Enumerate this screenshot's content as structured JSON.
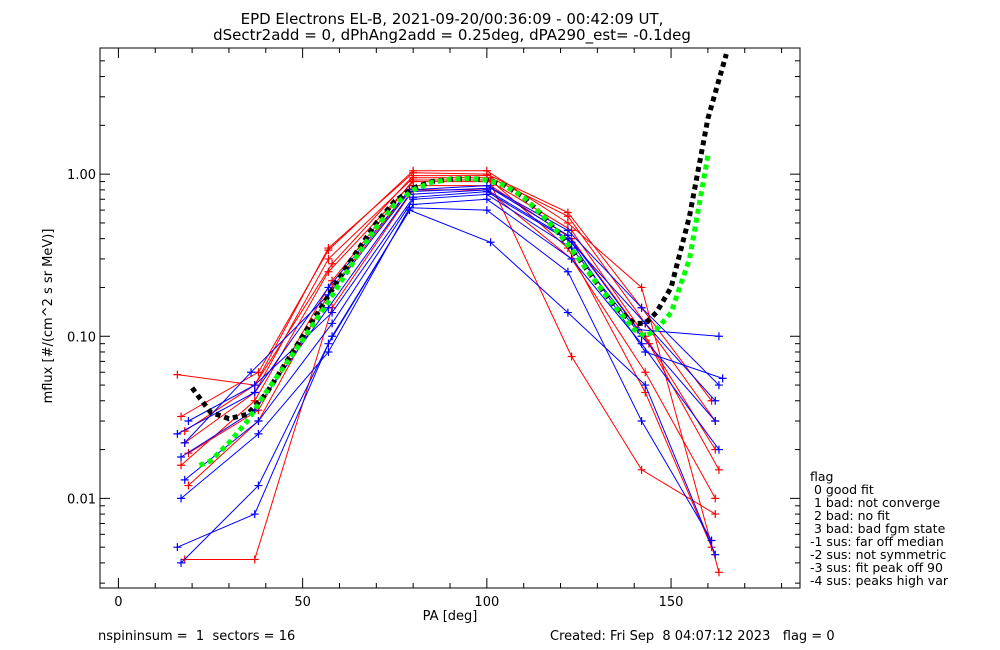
{
  "chart_data": {
    "type": "line",
    "title_line1": "EPD Electrons EL-B, 2021-09-20/00:36:09 - 00:42:09 UT,",
    "title_line2": "dSectr2add = 0, dPhAng2add = 0.25deg, dPA290_est=  -0.1deg",
    "xlabel": "PA [deg]",
    "ylabel": "mflux [#/(cm^2 s sr MeV)]",
    "xlim": [
      -5,
      185
    ],
    "ylim": [
      0.0028,
      6.0
    ],
    "y_scale": "log",
    "x_ticks": [
      0,
      50,
      100,
      150
    ],
    "x_tick_labels": [
      "0",
      "50",
      "100",
      "150"
    ],
    "y_ticks": [
      0.01,
      0.1,
      1.0
    ],
    "y_tick_labels": [
      "0.01",
      "0.10",
      "1.00"
    ],
    "grid": false,
    "series": [
      {
        "color": "#ff0000",
        "style": "solid",
        "marker": "+",
        "curves": [
          [
            [
              16,
              0.058
            ],
            [
              37,
              0.05
            ],
            [
              57,
              0.35
            ],
            [
              80,
              1.02
            ],
            [
              100,
              1.0
            ],
            [
              122,
              0.58
            ],
            [
              142,
              0.15
            ],
            [
              161,
              0.04
            ]
          ],
          [
            [
              18,
              0.022
            ],
            [
              37,
              0.045
            ],
            [
              57,
              0.3
            ],
            [
              80,
              0.95
            ],
            [
              101,
              0.95
            ],
            [
              122,
              0.55
            ],
            [
              143,
              0.12
            ],
            [
              162,
              0.03
            ]
          ],
          [
            [
              17,
              0.016
            ],
            [
              37,
              0.04
            ],
            [
              57,
              0.25
            ],
            [
              80,
              0.9
            ],
            [
              101,
              0.9
            ],
            [
              123,
              0.45
            ],
            [
              143,
              0.1
            ],
            [
              162,
              0.02
            ]
          ],
          [
            [
              19,
              0.012
            ],
            [
              38,
              0.03
            ],
            [
              58,
              0.2
            ],
            [
              80,
              0.85
            ],
            [
              101,
              0.85
            ],
            [
              123,
              0.4
            ],
            [
              144,
              0.09
            ],
            [
              163,
              0.015
            ]
          ],
          [
            [
              18,
              0.0042
            ],
            [
              37,
              0.0042
            ],
            [
              58,
              0.15
            ],
            [
              80,
              0.8
            ],
            [
              100,
              0.8
            ],
            [
              123,
              0.3
            ],
            [
              143,
              0.06
            ],
            [
              162,
              0.01
            ]
          ],
          [
            [
              17,
              0.032
            ],
            [
              38,
              0.06
            ],
            [
              57,
              0.34
            ],
            [
              80,
              1.05
            ],
            [
              100,
              1.05
            ],
            [
              122,
              0.5
            ],
            [
              142,
              0.2
            ],
            [
              163,
              0.0035
            ]
          ],
          [
            [
              18,
              0.026
            ],
            [
              37,
              0.05
            ],
            [
              58,
              0.28
            ],
            [
              80,
              0.98
            ],
            [
              100,
              0.98
            ],
            [
              123,
              0.075
            ],
            [
              142,
              0.015
            ],
            [
              162,
              0.008
            ]
          ],
          [
            [
              19,
              0.019
            ],
            [
              38,
              0.035
            ],
            [
              58,
              0.22
            ],
            [
              80,
              0.92
            ],
            [
              101,
              0.92
            ],
            [
              122,
              0.35
            ],
            [
              143,
              0.045
            ],
            [
              161,
              0.005
            ]
          ]
        ]
      },
      {
        "color": "#0000ff",
        "style": "solid",
        "marker": "+",
        "curves": [
          [
            [
              16,
              0.025
            ],
            [
              37,
              0.045
            ],
            [
              57,
              0.2
            ],
            [
              79,
              0.8
            ],
            [
              100,
              0.85
            ],
            [
              122,
              0.45
            ],
            [
              142,
              0.15
            ],
            [
              163,
              0.05
            ]
          ],
          [
            [
              17,
              0.018
            ],
            [
              37,
              0.035
            ],
            [
              57,
              0.15
            ],
            [
              79,
              0.75
            ],
            [
              100,
              0.8
            ],
            [
              122,
              0.4
            ],
            [
              143,
              0.12
            ],
            [
              162,
              0.04
            ]
          ],
          [
            [
              18,
              0.013
            ],
            [
              38,
              0.03
            ],
            [
              58,
              0.12
            ],
            [
              80,
              0.7
            ],
            [
              100,
              0.75
            ],
            [
              123,
              0.35
            ],
            [
              142,
              0.1
            ],
            [
              162,
              0.03
            ]
          ],
          [
            [
              16,
              0.005
            ],
            [
              37,
              0.008
            ],
            [
              57,
              0.09
            ],
            [
              79,
              0.6
            ],
            [
              101,
              0.38
            ],
            [
              122,
              0.14
            ],
            [
              143,
              0.05
            ],
            [
              162,
              0.0045
            ]
          ],
          [
            [
              17,
              0.004
            ],
            [
              38,
              0.012
            ],
            [
              58,
              0.1
            ],
            [
              80,
              0.65
            ],
            [
              100,
              0.7
            ],
            [
              123,
              0.3
            ],
            [
              142,
              0.09
            ],
            [
              163,
              0.02
            ]
          ],
          [
            [
              18,
              0.022
            ],
            [
              36,
              0.06
            ],
            [
              57,
              0.18
            ],
            [
              79,
              0.78
            ],
            [
              101,
              0.82
            ],
            [
              122,
              0.42
            ],
            [
              141,
              0.11
            ],
            [
              163,
              0.1
            ]
          ],
          [
            [
              19,
              0.03
            ],
            [
              37,
              0.05
            ],
            [
              58,
              0.14
            ],
            [
              80,
              0.72
            ],
            [
              100,
              0.78
            ],
            [
              123,
              0.38
            ],
            [
              143,
              0.08
            ],
            [
              164,
              0.055
            ]
          ],
          [
            [
              17,
              0.01
            ],
            [
              38,
              0.025
            ],
            [
              57,
              0.08
            ],
            [
              79,
              0.62
            ],
            [
              100,
              0.6
            ],
            [
              122,
              0.25
            ],
            [
              142,
              0.03
            ],
            [
              161,
              0.0055
            ]
          ]
        ]
      },
      {
        "color": "#000000",
        "style": "dashed",
        "marker": "",
        "x": [
          20,
          25,
          30,
          35,
          40,
          45,
          50,
          55,
          60,
          65,
          70,
          75,
          80,
          85,
          90,
          95,
          100,
          105,
          110,
          115,
          120,
          125,
          130,
          135,
          140,
          143,
          146,
          150,
          155,
          160,
          165
        ],
        "y": [
          0.048,
          0.034,
          0.031,
          0.033,
          0.044,
          0.066,
          0.1,
          0.15,
          0.23,
          0.34,
          0.5,
          0.68,
          0.82,
          0.9,
          0.93,
          0.94,
          0.92,
          0.85,
          0.72,
          0.56,
          0.42,
          0.3,
          0.21,
          0.15,
          0.12,
          0.12,
          0.14,
          0.2,
          0.55,
          2.2,
          5.5
        ]
      },
      {
        "color": "#00ff00",
        "style": "dashed",
        "marker": "",
        "x": [
          22,
          25,
          30,
          35,
          40,
          45,
          50,
          55,
          60,
          65,
          70,
          75,
          80,
          85,
          90,
          95,
          100,
          105,
          110,
          115,
          120,
          125,
          130,
          135,
          140,
          143,
          146,
          150,
          155,
          160
        ],
        "y": [
          0.016,
          0.017,
          0.022,
          0.03,
          0.045,
          0.065,
          0.095,
          0.14,
          0.21,
          0.32,
          0.47,
          0.65,
          0.8,
          0.89,
          0.93,
          0.94,
          0.92,
          0.85,
          0.72,
          0.56,
          0.42,
          0.3,
          0.21,
          0.15,
          0.11,
          0.1,
          0.11,
          0.14,
          0.3,
          1.3
        ]
      }
    ]
  },
  "legend": {
    "title": "flag",
    "items": [
      " 0 good fit",
      " 1 bad: not converge",
      " 2 bad: no fit",
      " 3 bad: bad fgm state",
      "-1 sus: far off median",
      "-2 sus: not symmetric",
      "-3 sus: fit peak off 90",
      "-4 sus: peaks high var"
    ]
  },
  "footer": {
    "left": "nspininsum =  1  sectors = 16",
    "right": "Created: Fri Sep  8 04:07:12 2023   flag = 0"
  },
  "colors": {
    "red": "#ff0000",
    "blue": "#0000ff",
    "black": "#000000",
    "green": "#00ff00"
  }
}
